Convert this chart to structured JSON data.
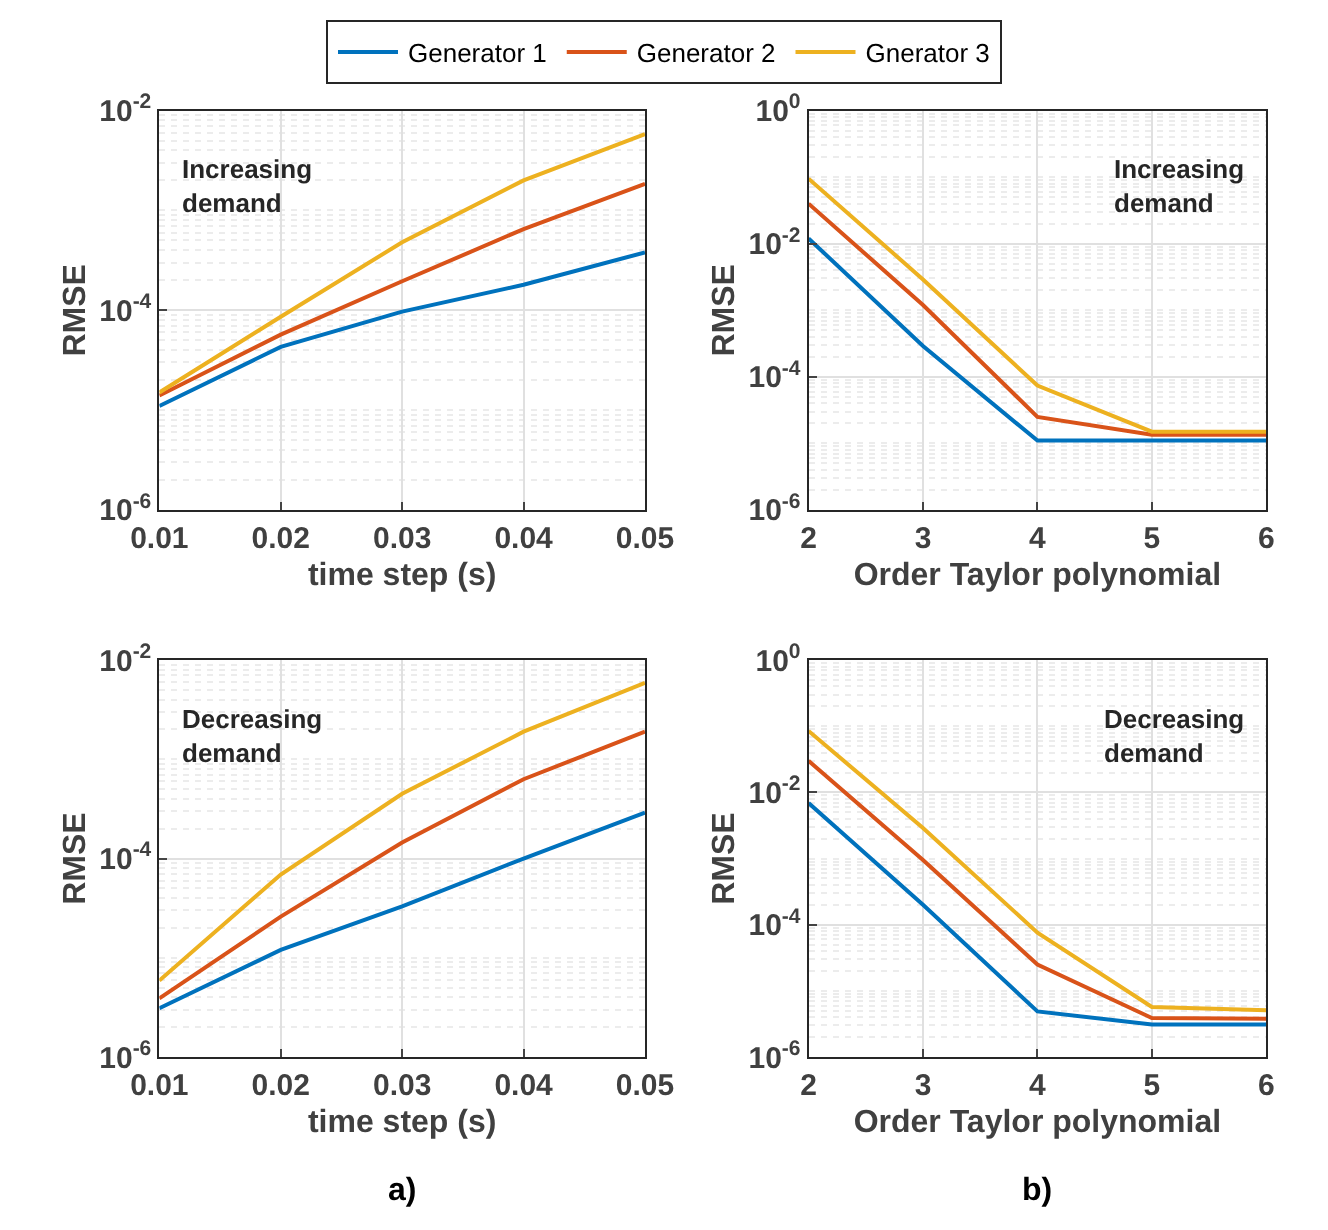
{
  "chart_data": [
    {
      "type": "line",
      "x": [
        0.01,
        0.02,
        0.03,
        0.04,
        0.05
      ],
      "xlabel": "time step (s)",
      "ylabel": "RMSE",
      "log": "y",
      "grid": true,
      "legend": "top",
      "line_style": "solid",
      "marker": "none",
      "xlim": [
        0.01,
        0.05
      ],
      "xticks": [
        0.01,
        0.02,
        0.03,
        0.04,
        0.05
      ],
      "ylim": [
        1e-06,
        0.01
      ],
      "yticks": [
        {
          "value": 1e-06,
          "label": "10$^{-6}$"
        },
        {
          "value": 0.0001,
          "label": "10$^{-4}$"
        },
        {
          "value": 0.01,
          "label": "10$^{-2}$"
        }
      ],
      "annotations": [
        "Increasing\ndemand"
      ],
      "series": [
        {
          "name": "Generator 1",
          "color": "#0072bd",
          "values": [
            1.1e-05,
            4.3e-05,
            9.7e-05,
            0.00018,
            0.00038
          ]
        },
        {
          "name": "Generator 2",
          "color": "#d95319",
          "values": [
            1.4e-05,
            5.7e-05,
            0.000195,
            0.00065,
            0.00185
          ]
        },
        {
          "name": "Gnerator 3",
          "color": "#edb120",
          "values": [
            1.5e-05,
            8.6e-05,
            0.00048,
            0.002,
            0.0058
          ]
        }
      ]
    },
    {
      "type": "line",
      "x": [
        2,
        3,
        4,
        5,
        6
      ],
      "xlabel": "Order Taylor polynomial",
      "ylabel": "RMSE",
      "log": "y",
      "grid": true,
      "line_style": "solid",
      "marker": "none",
      "xlim": [
        2,
        6
      ],
      "xticks": [
        2,
        3,
        4,
        5,
        6
      ],
      "ylim": [
        1e-06,
        1
      ],
      "yticks": [
        {
          "value": 1e-06,
          "label": "10$^{-6}$"
        },
        {
          "value": 0.0001,
          "label": "10$^{-4}$"
        },
        {
          "value": 0.01,
          "label": "10$^{-2}$"
        },
        {
          "value": 1,
          "label": "10$^{0}$"
        }
      ],
      "annotations": [
        "Increasing\ndemand"
      ],
      "series": [
        {
          "color": "#0072bd",
          "values": [
            0.012,
            0.00029,
            1.1e-05,
            1.1e-05,
            1.1e-05
          ]
        },
        {
          "color": "#d95319",
          "values": [
            0.04,
            0.0012,
            2.5e-05,
            1.35e-05,
            1.35e-05
          ]
        },
        {
          "color": "#edb120",
          "values": [
            0.095,
            0.0029,
            7.4e-05,
            1.5e-05,
            1.5e-05
          ]
        }
      ]
    },
    {
      "type": "line",
      "x": [
        0.01,
        0.02,
        0.03,
        0.04,
        0.05
      ],
      "xlabel": "time step (s)",
      "ylabel": "RMSE",
      "log": "y",
      "grid": true,
      "line_style": "solid",
      "marker": "none",
      "xlim": [
        0.01,
        0.05
      ],
      "xticks": [
        0.01,
        0.02,
        0.03,
        0.04,
        0.05
      ],
      "ylim": [
        1e-06,
        0.01
      ],
      "yticks": [
        {
          "value": 1e-06,
          "label": "10$^{-6}$"
        },
        {
          "value": 0.0001,
          "label": "10$^{-4}$"
        },
        {
          "value": 0.01,
          "label": "10$^{-2}$"
        }
      ],
      "annotations": [
        "Decreasing\ndemand",
        "a)"
      ],
      "series": [
        {
          "color": "#0072bd",
          "values": [
            3.1e-06,
            1.2e-05,
            3.3e-05,
            0.0001,
            0.00029
          ]
        },
        {
          "color": "#d95319",
          "values": [
            3.9e-06,
            2.6e-05,
            0.000145,
            0.00063,
            0.0019
          ]
        },
        {
          "color": "#edb120",
          "values": [
            5.9e-06,
            6.9e-05,
            0.00045,
            0.0019,
            0.0059
          ]
        }
      ]
    },
    {
      "type": "line",
      "x": [
        2,
        3,
        4,
        5,
        6
      ],
      "xlabel": "Order Taylor polynomial",
      "ylabel": "RMSE",
      "log": "y",
      "grid": true,
      "line_style": "solid",
      "marker": "none",
      "xlim": [
        2,
        6
      ],
      "xticks": [
        2,
        3,
        4,
        5,
        6
      ],
      "ylim": [
        1e-06,
        1
      ],
      "yticks": [
        {
          "value": 1e-06,
          "label": "10$^{-6}$"
        },
        {
          "value": 0.0001,
          "label": "10$^{-4}$"
        },
        {
          "value": 0.01,
          "label": "10$^{-2}$"
        },
        {
          "value": 1,
          "label": "10$^{0}$"
        }
      ],
      "annotations": [
        "Decreasing\ndemand",
        "b)"
      ],
      "series": [
        {
          "color": "#0072bd",
          "values": [
            0.0069,
            0.0002,
            4.9e-06,
            3.1e-06,
            3.1e-06
          ]
        },
        {
          "color": "#d95319",
          "values": [
            0.03,
            0.00095,
            2.5e-05,
            3.9e-06,
            3.8e-06
          ]
        },
        {
          "color": "#edb120",
          "values": [
            0.085,
            0.0029,
            7.6e-05,
            5.7e-06,
            5.1e-06
          ]
        }
      ]
    }
  ]
}
